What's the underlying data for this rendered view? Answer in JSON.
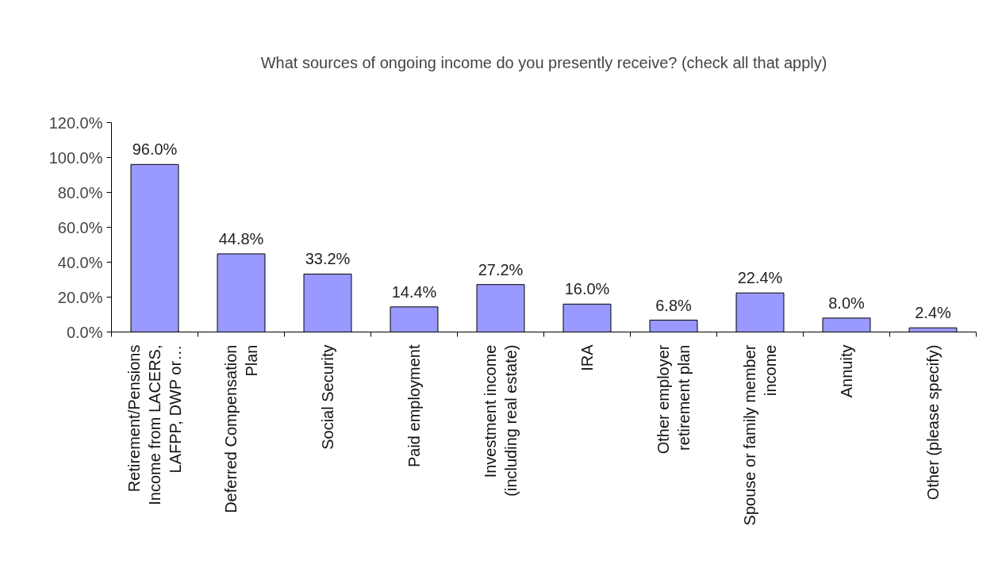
{
  "chart_data": {
    "type": "bar",
    "title": "What sources of ongoing income do you presently receive? (check all that apply)",
    "categories": [
      "Retirement/Pensions Income from LACERS, LAFPP, DWP or…",
      "Deferred Compensation Plan",
      "Social Security",
      "Paid employment",
      "Investment income (including real estate)",
      "IRA",
      "Other employer retirement plan",
      "Spouse or family member income",
      "Annuity",
      "Other (please specify)"
    ],
    "values": [
      96.0,
      44.8,
      33.2,
      14.4,
      27.2,
      16.0,
      6.8,
      22.4,
      8.0,
      2.4
    ],
    "value_labels": [
      "96.0%",
      "44.8%",
      "33.2%",
      "14.4%",
      "27.2%",
      "16.0%",
      "6.8%",
      "22.4%",
      "8.0%",
      "2.4%"
    ],
    "color": "#9999ff",
    "ylim": [
      0,
      120
    ],
    "yticks": [
      {
        "value": 0,
        "label": "0.0%"
      },
      {
        "value": 20,
        "label": "20.0%"
      },
      {
        "value": 40,
        "label": "40.0%"
      },
      {
        "value": 60,
        "label": "60.0%"
      },
      {
        "value": 80,
        "label": "80.0%"
      },
      {
        "value": 100,
        "label": "100.0%"
      },
      {
        "value": 120,
        "label": "120.0%"
      }
    ],
    "grid": false
  }
}
